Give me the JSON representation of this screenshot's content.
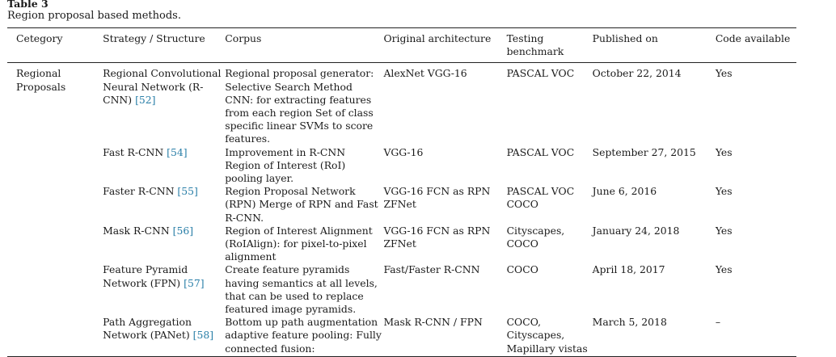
{
  "caption": {
    "label": "Table 3",
    "text": "Region proposal based methods."
  },
  "headers": [
    "Cetegory",
    "Strategy / Structure",
    "Corpus",
    "Original architecture",
    "Testing benchmark",
    "Published on",
    "Code available"
  ],
  "rows": [
    {
      "category": "Regional Proposals",
      "strategy": "Regional Convolutional Neural Network (R-CNN)",
      "ref": "[52]",
      "corpus": "Regional proposal generator: Selective Search Method CNN: for extracting features from each region Set of class specific linear SVMs to score features.",
      "architecture": "AlexNet VGG-16",
      "benchmark": "PASCAL VOC",
      "published": "October 22, 2014",
      "code": "Yes"
    },
    {
      "category": "",
      "strategy": "Fast R-CNN",
      "ref": "[54]",
      "corpus": "Improvement in R-CNN Region of Interest (RoI) pooling layer.",
      "architecture": "VGG-16",
      "benchmark": "PASCAL VOC",
      "published": "September 27, 2015",
      "code": "Yes"
    },
    {
      "category": "",
      "strategy": "Faster R-CNN",
      "ref": "[55]",
      "corpus": "Region Proposal Network (RPN) Merge of RPN and Fast R-CNN.",
      "architecture": "VGG-16 FCN as RPN ZFNet",
      "benchmark": "PASCAL VOC COCO",
      "published": "June 6, 2016",
      "code": "Yes"
    },
    {
      "category": "",
      "strategy": "Mask R-CNN",
      "ref": "[56]",
      "corpus": "Region of Interest Alignment (RoIAlign): for pixel-to-pixel alignment",
      "architecture": "VGG-16 FCN as RPN ZFNet",
      "benchmark": "Cityscapes, COCO",
      "published": "January 24, 2018",
      "code": "Yes"
    },
    {
      "category": "",
      "strategy": "Feature Pyramid Network (FPN)",
      "ref": "[57]",
      "corpus": "Create feature pyramids having semantics at all levels, that can be used to replace featured image pyramids.",
      "architecture": "Fast/Faster R-CNN",
      "benchmark": "COCO",
      "published": "April 18, 2017",
      "code": "Yes"
    },
    {
      "category": "",
      "strategy": "Path Aggregation Network (PANet)",
      "ref": "[58]",
      "corpus": "Bottom up path augmentation adaptive feature pooling: Fully connected fusion:",
      "architecture": "Mask R-CNN / FPN",
      "benchmark": "COCO, Cityscapes, Mapillary vistas",
      "published": "March 5, 2018",
      "code": "–"
    }
  ]
}
